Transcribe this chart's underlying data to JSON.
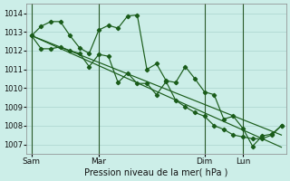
{
  "xlabel": "Pression niveau de la mer( hPa )",
  "bg_color": "#cceee8",
  "grid_color": "#aad4ce",
  "line_color": "#1a5c1a",
  "vline_color": "#2a5a2a",
  "ylim": [
    1006.5,
    1014.5
  ],
  "yticks": [
    1007,
    1008,
    1009,
    1010,
    1011,
    1012,
    1013,
    1014
  ],
  "xtick_labels": [
    "Sam",
    "Mar",
    "Dim",
    "Lun"
  ],
  "series1_x": [
    0,
    1,
    2,
    3,
    4,
    5,
    6,
    7,
    8,
    9,
    10,
    11,
    12,
    13,
    14,
    15,
    16,
    17,
    18,
    19,
    20,
    21,
    22,
    23,
    24,
    25,
    26
  ],
  "series1_y": [
    1012.8,
    1013.3,
    1013.55,
    1013.55,
    1012.8,
    1012.15,
    1011.85,
    1013.1,
    1013.35,
    1013.2,
    1013.85,
    1013.9,
    1011.0,
    1011.3,
    1010.4,
    1010.3,
    1011.15,
    1010.5,
    1009.8,
    1009.65,
    1008.35,
    1008.5,
    1007.85,
    1006.9,
    1007.45,
    1007.55,
    1008.0
  ],
  "series2_x": [
    0,
    1,
    2,
    3,
    4,
    5,
    6,
    7,
    8,
    9,
    10,
    11,
    12,
    13,
    14,
    15,
    16,
    17,
    18,
    19,
    20,
    21,
    22,
    23,
    24,
    25,
    26
  ],
  "series2_y": [
    1012.8,
    1012.1,
    1012.1,
    1012.2,
    1012.0,
    1011.85,
    1011.15,
    1011.8,
    1011.7,
    1010.3,
    1010.8,
    1010.25,
    1010.25,
    1009.65,
    1010.35,
    1009.35,
    1009.0,
    1008.7,
    1008.5,
    1008.0,
    1007.8,
    1007.5,
    1007.4,
    1007.3,
    1007.3,
    1007.5,
    1008.0
  ],
  "line3": [
    1012.8,
    1007.5
  ],
  "line4": [
    1012.8,
    1006.85
  ],
  "vlines_x": [
    0,
    7,
    18,
    22
  ],
  "n": 27
}
